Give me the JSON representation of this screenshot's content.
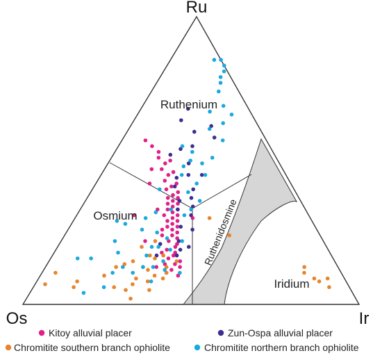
{
  "chart_data": {
    "type": "scatter",
    "diagram": "ternary",
    "vertices": {
      "top": "Ru",
      "left": "Os",
      "right": "Ir"
    },
    "fields": [
      "Ruthenium",
      "Osmium",
      "Ruthenidosmine",
      "Iridium"
    ],
    "legend_placement": "bottom",
    "series": [
      {
        "name": "Kitoy alluvial placer",
        "color": "#e0208a",
        "points": [
          [
            0.36,
            0.57,
            0.07
          ],
          [
            0.35,
            0.55,
            0.1
          ],
          [
            0.34,
            0.53,
            0.13
          ],
          [
            0.32,
            0.5,
            0.18
          ],
          [
            0.34,
            0.49,
            0.17
          ],
          [
            0.36,
            0.47,
            0.17
          ],
          [
            0.33,
            0.46,
            0.21
          ],
          [
            0.35,
            0.45,
            0.2
          ],
          [
            0.37,
            0.43,
            0.2
          ],
          [
            0.34,
            0.42,
            0.24
          ],
          [
            0.36,
            0.41,
            0.23
          ],
          [
            0.38,
            0.4,
            0.22
          ],
          [
            0.35,
            0.39,
            0.26
          ],
          [
            0.37,
            0.38,
            0.25
          ],
          [
            0.39,
            0.37,
            0.24
          ],
          [
            0.36,
            0.37,
            0.27
          ],
          [
            0.38,
            0.36,
            0.26
          ],
          [
            0.4,
            0.35,
            0.25
          ],
          [
            0.37,
            0.35,
            0.28
          ],
          [
            0.39,
            0.34,
            0.27
          ],
          [
            0.41,
            0.33,
            0.26
          ],
          [
            0.38,
            0.33,
            0.29
          ],
          [
            0.4,
            0.32,
            0.28
          ],
          [
            0.43,
            0.31,
            0.26
          ],
          [
            0.39,
            0.31,
            0.3
          ],
          [
            0.41,
            0.3,
            0.29
          ],
          [
            0.43,
            0.29,
            0.28
          ],
          [
            0.4,
            0.29,
            0.31
          ],
          [
            0.42,
            0.28,
            0.3
          ],
          [
            0.44,
            0.27,
            0.29
          ],
          [
            0.41,
            0.27,
            0.32
          ],
          [
            0.43,
            0.26,
            0.31
          ],
          [
            0.46,
            0.26,
            0.28
          ],
          [
            0.42,
            0.25,
            0.33
          ],
          [
            0.44,
            0.24,
            0.32
          ],
          [
            0.47,
            0.24,
            0.29
          ],
          [
            0.43,
            0.23,
            0.34
          ],
          [
            0.46,
            0.22,
            0.32
          ],
          [
            0.44,
            0.21,
            0.35
          ],
          [
            0.45,
            0.2,
            0.35
          ],
          [
            0.48,
            0.19,
            0.33
          ],
          [
            0.46,
            0.18,
            0.36
          ],
          [
            0.5,
            0.18,
            0.32
          ],
          [
            0.47,
            0.17,
            0.36
          ],
          [
            0.49,
            0.16,
            0.35
          ],
          [
            0.46,
            0.15,
            0.39
          ],
          [
            0.48,
            0.14,
            0.38
          ],
          [
            0.51,
            0.14,
            0.35
          ],
          [
            0.47,
            0.13,
            0.4
          ],
          [
            0.5,
            0.12,
            0.38
          ],
          [
            0.49,
            0.1,
            0.41
          ],
          [
            0.52,
            0.11,
            0.37
          ],
          [
            0.54,
            0.13,
            0.33
          ],
          [
            0.39,
            0.47,
            0.14
          ],
          [
            0.35,
            0.3,
            0.35
          ],
          [
            0.53,
            0.22,
            0.25
          ],
          [
            0.52,
            0.31,
            0.17
          ],
          [
            0.35,
            0.51,
            0.14
          ],
          [
            0.42,
            0.42,
            0.16
          ],
          [
            0.44,
            0.33,
            0.23
          ]
        ]
      },
      {
        "name": "Zun-Ospa alluvial placer",
        "color": "#3b2f8f",
        "points": [
          [
            0.18,
            0.68,
            0.14
          ],
          [
            0.22,
            0.64,
            0.14
          ],
          [
            0.14,
            0.62,
            0.24
          ],
          [
            0.2,
            0.6,
            0.2
          ],
          [
            0.15,
            0.58,
            0.27
          ],
          [
            0.23,
            0.55,
            0.22
          ],
          [
            0.27,
            0.54,
            0.19
          ],
          [
            0.31,
            0.52,
            0.17
          ],
          [
            0.27,
            0.49,
            0.24
          ],
          [
            0.25,
            0.45,
            0.3
          ],
          [
            0.29,
            0.45,
            0.26
          ],
          [
            0.33,
            0.44,
            0.23
          ],
          [
            0.3,
            0.4,
            0.3
          ],
          [
            0.35,
            0.41,
            0.24
          ],
          [
            0.32,
            0.37,
            0.31
          ],
          [
            0.36,
            0.36,
            0.28
          ],
          [
            0.33,
            0.34,
            0.33
          ],
          [
            0.38,
            0.33,
            0.29
          ],
          [
            0.35,
            0.31,
            0.34
          ],
          [
            0.4,
            0.27,
            0.33
          ],
          [
            0.37,
            0.26,
            0.37
          ],
          [
            0.43,
            0.22,
            0.35
          ],
          [
            0.49,
            0.21,
            0.3
          ],
          [
            0.52,
            0.17,
            0.31
          ],
          [
            0.46,
            0.17,
            0.37
          ],
          [
            0.41,
            0.2,
            0.39
          ],
          [
            0.44,
            0.19,
            0.37
          ]
        ]
      },
      {
        "name": "Chromitite southern branch ophiolite",
        "color": "#e8842a",
        "points": [
          [
            0.82,
            0.06,
            0.12
          ],
          [
            0.8,
            0.08,
            0.12
          ],
          [
            0.85,
            0.11,
            0.04
          ],
          [
            0.7,
            0.06,
            0.24
          ],
          [
            0.67,
            0.05,
            0.28
          ],
          [
            0.64,
            0.07,
            0.29
          ],
          [
            0.67,
            0.02,
            0.31
          ],
          [
            0.71,
            0.1,
            0.19
          ],
          [
            0.6,
            0.05,
            0.35
          ],
          [
            0.6,
            0.15,
            0.25
          ],
          [
            0.56,
            0.1,
            0.34
          ],
          [
            0.57,
            0.12,
            0.31
          ],
          [
            0.62,
            0.09,
            0.29
          ],
          [
            0.58,
            0.13,
            0.29
          ],
          [
            0.54,
            0.17,
            0.29
          ],
          [
            0.51,
            0.13,
            0.36
          ],
          [
            0.5,
            0.17,
            0.33
          ],
          [
            0.53,
            0.16,
            0.31
          ],
          [
            0.63,
            0.14,
            0.23
          ],
          [
            0.66,
            0.13,
            0.21
          ],
          [
            0.47,
            0.15,
            0.38
          ],
          [
            0.59,
            0.08,
            0.33
          ],
          [
            0.55,
            0.2,
            0.25
          ],
          [
            0.5,
            0.22,
            0.28
          ],
          [
            0.1,
            0.13,
            0.77
          ],
          [
            0.11,
            0.11,
            0.78
          ],
          [
            0.09,
            0.09,
            0.82
          ],
          [
            0.08,
            0.08,
            0.84
          ],
          [
            0.06,
            0.06,
            0.88
          ],
          [
            0.05,
            0.09,
            0.86
          ],
          [
            0.3,
            0.3,
            0.4
          ],
          [
            0.27,
            0.24,
            0.49
          ],
          [
            0.52,
            0.11,
            0.37
          ],
          [
            0.54,
            0.09,
            0.37
          ],
          [
            0.9,
            0.07,
            0.03
          ]
        ]
      },
      {
        "name": "Chromitite northern branch ophiolite",
        "color": "#1aa9de",
        "points": [
          [
            0.02,
            0.85,
            0.13
          ],
          [
            0.0,
            0.85,
            0.15
          ],
          [
            0.0,
            0.83,
            0.17
          ],
          [
            0.01,
            0.81,
            0.18
          ],
          [
            0.03,
            0.79,
            0.18
          ],
          [
            0.04,
            0.77,
            0.19
          ],
          [
            0.06,
            0.74,
            0.2
          ],
          [
            0.07,
            0.69,
            0.24
          ],
          [
            0.06,
            0.66,
            0.28
          ],
          [
            0.1,
            0.63,
            0.27
          ],
          [
            0.12,
            0.67,
            0.21
          ],
          [
            0.15,
            0.61,
            0.24
          ],
          [
            0.13,
            0.57,
            0.3
          ],
          [
            0.24,
            0.53,
            0.23
          ],
          [
            0.26,
            0.5,
            0.24
          ],
          [
            0.19,
            0.51,
            0.3
          ],
          [
            0.26,
            0.55,
            0.19
          ],
          [
            0.23,
            0.49,
            0.28
          ],
          [
            0.24,
            0.45,
            0.31
          ],
          [
            0.29,
            0.48,
            0.23
          ],
          [
            0.31,
            0.45,
            0.24
          ],
          [
            0.28,
            0.42,
            0.3
          ],
          [
            0.32,
            0.39,
            0.29
          ],
          [
            0.3,
            0.36,
            0.34
          ],
          [
            0.34,
            0.33,
            0.33
          ],
          [
            0.37,
            0.31,
            0.32
          ],
          [
            0.4,
            0.33,
            0.27
          ],
          [
            0.45,
            0.32,
            0.23
          ],
          [
            0.49,
            0.3,
            0.21
          ],
          [
            0.56,
            0.28,
            0.16
          ],
          [
            0.52,
            0.26,
            0.22
          ],
          [
            0.48,
            0.25,
            0.27
          ],
          [
            0.46,
            0.23,
            0.31
          ],
          [
            0.42,
            0.22,
            0.36
          ],
          [
            0.47,
            0.19,
            0.34
          ],
          [
            0.52,
            0.2,
            0.28
          ],
          [
            0.55,
            0.17,
            0.28
          ],
          [
            0.51,
            0.15,
            0.34
          ],
          [
            0.48,
            0.11,
            0.41
          ],
          [
            0.52,
            0.12,
            0.36
          ],
          [
            0.58,
            0.13,
            0.29
          ],
          [
            0.62,
            0.11,
            0.27
          ],
          [
            0.58,
            0.08,
            0.34
          ],
          [
            0.63,
            0.18,
            0.19
          ],
          [
            0.72,
            0.16,
            0.12
          ],
          [
            0.68,
            0.11,
            0.21
          ],
          [
            0.64,
            0.13,
            0.23
          ],
          [
            0.76,
            0.16,
            0.08
          ],
          [
            0.73,
            0.06,
            0.21
          ],
          [
            0.8,
            0.04,
            0.16
          ],
          [
            0.58,
            0.29,
            0.13
          ],
          [
            0.62,
            0.22,
            0.16
          ],
          [
            0.55,
            0.13,
            0.32
          ],
          [
            0.4,
            0.4,
            0.2
          ],
          [
            0.5,
            0.2,
            0.3
          ]
        ]
      }
    ]
  }
}
